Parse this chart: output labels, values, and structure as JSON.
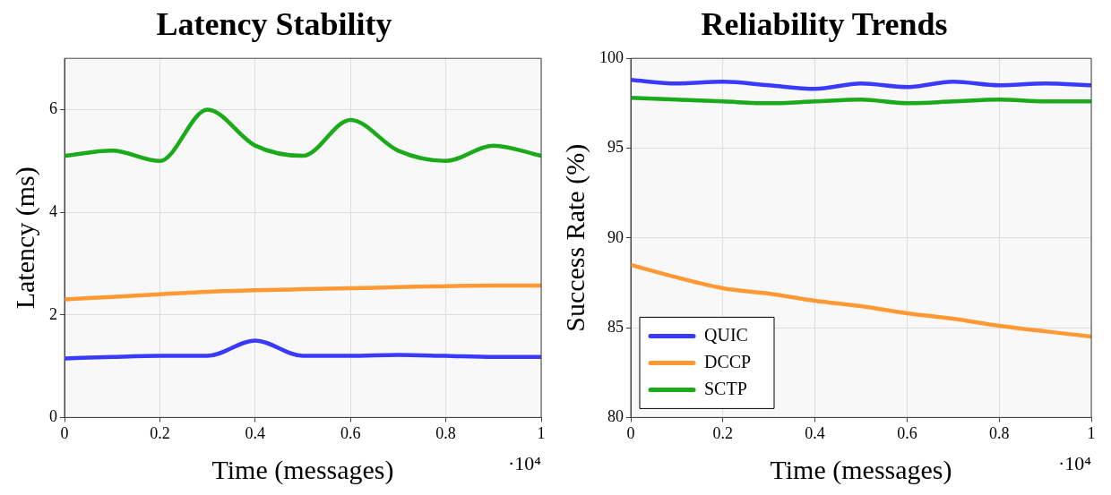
{
  "chart_data": [
    {
      "type": "line",
      "title": "Latency Stability",
      "xlabel": "Time (messages)",
      "ylabel": "Latency (ms)",
      "annotations": [
        "·10⁴"
      ],
      "x": [
        0,
        0.1,
        0.2,
        0.3,
        0.4,
        0.5,
        0.6,
        0.7,
        0.8,
        0.9,
        1
      ],
      "series": [
        {
          "color": "#3a3aff",
          "values": [
            1.15,
            1.18,
            1.2,
            1.2,
            1.5,
            1.2,
            1.2,
            1.22,
            1.2,
            1.18,
            1.18
          ]
        },
        {
          "color": "#ff9933",
          "values": [
            2.3,
            2.35,
            2.4,
            2.45,
            2.48,
            2.5,
            2.52,
            2.54,
            2.56,
            2.57,
            2.57
          ]
        },
        {
          "color": "#1aaa1a",
          "values": [
            5.1,
            5.2,
            5.0,
            6.0,
            5.3,
            5.1,
            5.8,
            5.2,
            5.0,
            5.3,
            5.1
          ]
        }
      ],
      "xlim": [
        0,
        1
      ],
      "xticks": [
        0,
        0.2,
        0.4,
        0.6,
        0.8,
        1
      ],
      "ylim": [
        0,
        7
      ],
      "yticks": [
        0,
        2,
        4,
        6
      ],
      "grid": true,
      "legend": false,
      "marker": "none",
      "line_style": "solid"
    },
    {
      "type": "line",
      "title": "Reliability Trends",
      "xlabel": "Time (messages)",
      "ylabel": "Success Rate (%)",
      "annotations": [
        "·10⁴"
      ],
      "x": [
        0,
        0.1,
        0.2,
        0.3,
        0.4,
        0.5,
        0.6,
        0.7,
        0.8,
        0.9,
        1
      ],
      "series": [
        {
          "name": "QUIC",
          "color": "#3a3aff",
          "values": [
            98.8,
            98.6,
            98.7,
            98.5,
            98.3,
            98.6,
            98.4,
            98.7,
            98.5,
            98.6,
            98.5
          ]
        },
        {
          "name": "DCCP",
          "color": "#ff9933",
          "values": [
            88.5,
            87.8,
            87.2,
            86.9,
            86.5,
            86.2,
            85.8,
            85.5,
            85.1,
            84.8,
            84.5
          ]
        },
        {
          "name": "SCTP",
          "color": "#1aaa1a",
          "values": [
            97.8,
            97.7,
            97.6,
            97.5,
            97.6,
            97.7,
            97.5,
            97.6,
            97.7,
            97.6,
            97.6
          ]
        }
      ],
      "xlim": [
        0,
        1
      ],
      "xticks": [
        0,
        0.2,
        0.4,
        0.6,
        0.8,
        1
      ],
      "ylim": [
        80,
        100
      ],
      "yticks": [
        80,
        85,
        90,
        95,
        100
      ],
      "grid": true,
      "legend": "bottom left",
      "marker": "none",
      "line_style": "solid"
    }
  ]
}
